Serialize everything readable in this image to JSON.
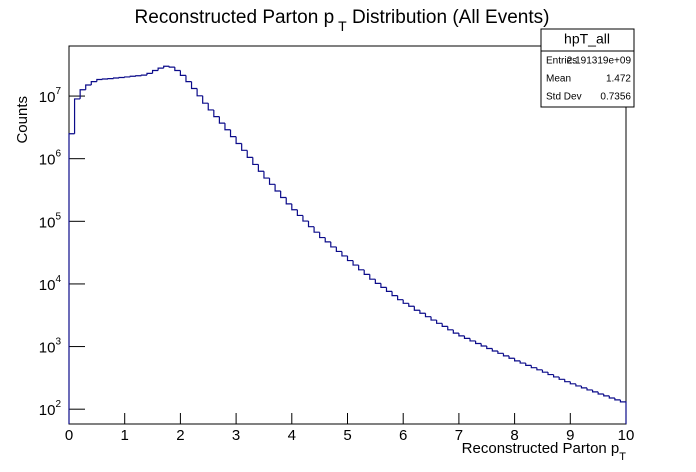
{
  "chart_data": {
    "type": "histogram",
    "title": "Reconstructed Parton p",
    "title_subscript": "T",
    "title_rest": " Distribution (All Events)",
    "x_label": "Reconstructed Parton p",
    "x_label_subscript": "T",
    "y_label": "Counts",
    "color": "#0b0b8a",
    "log_y": true,
    "xlim": [
      0,
      10
    ],
    "xticks": [
      0,
      1,
      2,
      3,
      4,
      5,
      6,
      7,
      8,
      9,
      10
    ],
    "ylim": [
      58,
      63000000
    ],
    "yticks": [
      {
        "value": 100,
        "label": "10",
        "exponent": "2"
      },
      {
        "value": 1000,
        "label": "10",
        "exponent": "3"
      },
      {
        "value": 10000,
        "label": "10",
        "exponent": "4"
      },
      {
        "value": 100000,
        "label": "10",
        "exponent": "5"
      },
      {
        "value": 1000000,
        "label": "10",
        "exponent": "6"
      },
      {
        "value": 10000000,
        "label": "10",
        "exponent": "7"
      }
    ],
    "bins": [
      0,
      0.1,
      0.2,
      0.3,
      0.4,
      0.5,
      0.6,
      0.7,
      0.8,
      0.9,
      1,
      1.1,
      1.2,
      1.3,
      1.4,
      1.5,
      1.6,
      1.7,
      1.8,
      1.9,
      2,
      2.1,
      2.2,
      2.3,
      2.4,
      2.5,
      2.6,
      2.7,
      2.8,
      2.9,
      3,
      3.1,
      3.2,
      3.3,
      3.4,
      3.5,
      3.6,
      3.7,
      3.8,
      3.9,
      4,
      4.1,
      4.2,
      4.3,
      4.4,
      4.5,
      4.6,
      4.7,
      4.8,
      4.9,
      5,
      5.1,
      5.2,
      5.3,
      5.4,
      5.5,
      5.6,
      5.7,
      5.8,
      5.9,
      6,
      6.1,
      6.2,
      6.3,
      6.4,
      6.5,
      6.6,
      6.7,
      6.8,
      6.9,
      7,
      7.1,
      7.2,
      7.3,
      7.4,
      7.5,
      7.6,
      7.7,
      7.8,
      7.9,
      8,
      8.1,
      8.2,
      8.3,
      8.4,
      8.5,
      8.6,
      8.7,
      8.8,
      8.9,
      9,
      9.1,
      9.2,
      9.3,
      9.4,
      9.5,
      9.6,
      9.7,
      9.8,
      9.9,
      10
    ],
    "values": [
      2500000,
      9000000,
      12600000,
      15000000,
      17000000,
      18400000,
      18700000,
      19000000,
      19400000,
      19800000,
      20200000,
      20700000,
      21100000,
      21600000,
      23000000,
      25600000,
      27900000,
      29900000,
      29000000,
      25600000,
      21400000,
      17000000,
      13200000,
      10100000,
      7700000,
      6000000,
      4700000,
      3700000,
      2900000,
      2250000,
      1750000,
      1360000,
      1050000,
      810000,
      630000,
      490000,
      390000,
      305000,
      240000,
      190000,
      153000,
      124000,
      101000,
      82000,
      67000,
      55000,
      47000,
      39000,
      33000,
      28000,
      23600,
      20000,
      16800,
      14200,
      11900,
      10200,
      8800,
      7600,
      6500,
      5600,
      4900,
      4400,
      3800,
      3400,
      3000,
      2650,
      2350,
      2100,
      1850,
      1640,
      1480,
      1350,
      1230,
      1120,
      1020,
      930,
      850,
      780,
      710,
      650,
      590,
      545,
      500,
      460,
      425,
      390,
      357,
      327,
      300,
      275,
      254,
      235,
      219,
      203,
      189,
      175,
      163,
      151,
      141,
      131
    ],
    "stats": {
      "name": "hpT_all",
      "rows": [
        {
          "label": "Entries",
          "value": "2.191319e+09"
        },
        {
          "label": "Mean",
          "value": 1.472
        },
        {
          "label": "Std Dev",
          "value": 0.7356
        }
      ]
    }
  }
}
